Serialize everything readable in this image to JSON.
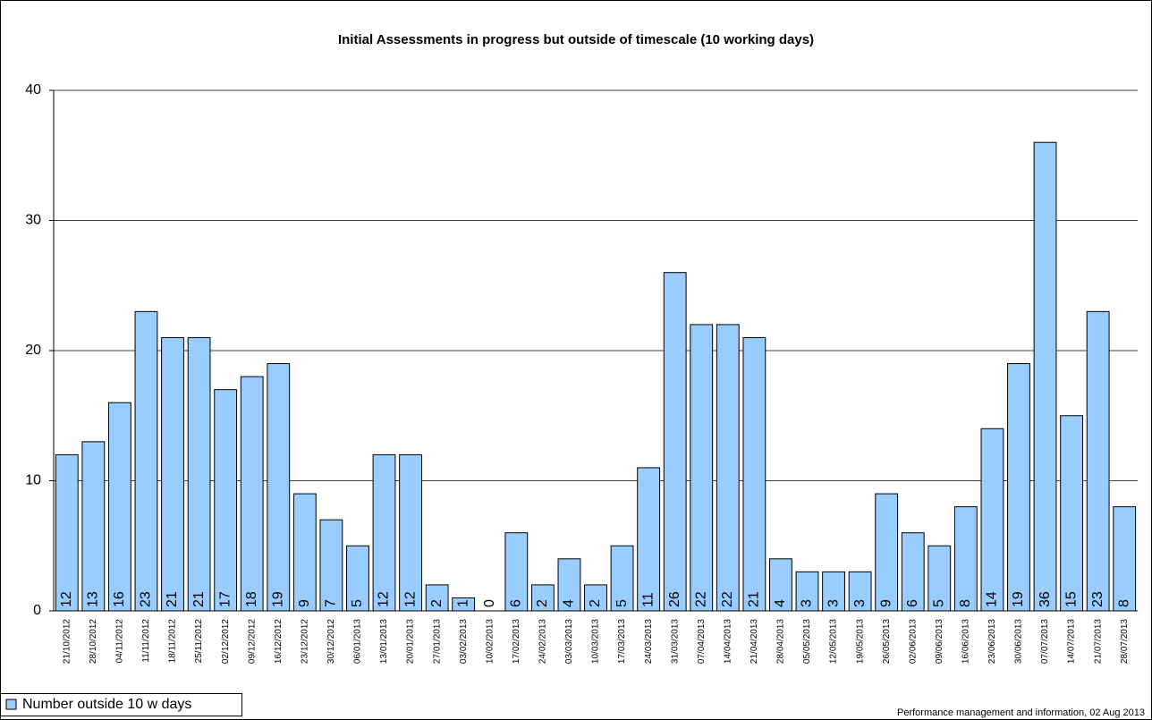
{
  "chart_data": {
    "type": "bar",
    "title": "Initial Assessments in progress but outside of timescale (10 working days)",
    "categories": [
      "21/10/2012",
      "28/10/2012",
      "04/11/2012",
      "11/11/2012",
      "18/11/2012",
      "25/11/2012",
      "02/12/2012",
      "09/12/2012",
      "16/12/2012",
      "23/12/2012",
      "30/12/2012",
      "06/01/2013",
      "13/01/2013",
      "20/01/2013",
      "27/01/2013",
      "03/02/2013",
      "10/02/2013",
      "17/02/2013",
      "24/02/2013",
      "03/03/2013",
      "10/03/2013",
      "17/03/2013",
      "24/03/2013",
      "31/03/2013",
      "07/04/2013",
      "14/04/2013",
      "21/04/2013",
      "28/04/2013",
      "05/05/2013",
      "12/05/2013",
      "19/05/2013",
      "26/05/2013",
      "02/06/2013",
      "09/06/2013",
      "16/06/2013",
      "23/06/2013",
      "30/06/2013",
      "07/07/2013",
      "14/07/2013",
      "21/07/2013",
      "28/07/2013"
    ],
    "series": [
      {
        "name": "Number outside 10 w days",
        "color": "#99ccff",
        "values": [
          12,
          13,
          16,
          23,
          21,
          21,
          17,
          18,
          19,
          9,
          7,
          5,
          12,
          12,
          2,
          1,
          0,
          6,
          2,
          4,
          2,
          5,
          11,
          26,
          22,
          22,
          21,
          4,
          3,
          3,
          3,
          9,
          6,
          5,
          8,
          14,
          19,
          36,
          15,
          23,
          8
        ]
      }
    ],
    "ylim": [
      0,
      40
    ],
    "yticks": [
      0,
      10,
      20,
      30,
      40
    ],
    "grid": true,
    "footnote": "Performance management and information, 02 Aug 2013"
  }
}
